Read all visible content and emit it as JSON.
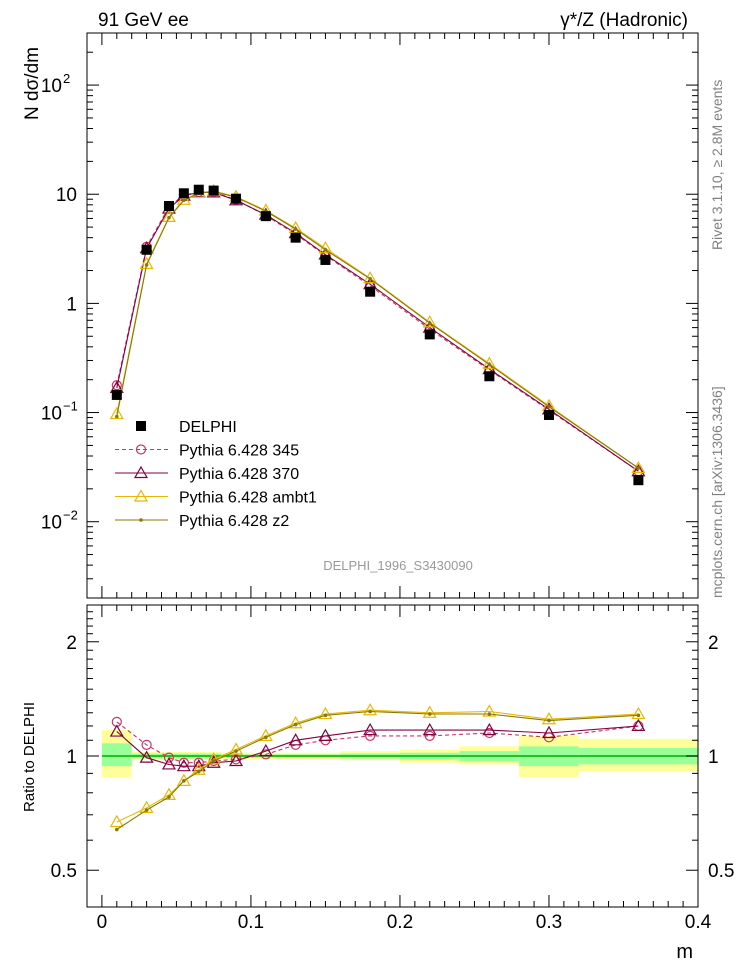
{
  "header": {
    "left": "91 GeV ee",
    "right": "γ*/Z (Hadronic)"
  },
  "side": {
    "rivet": "Rivet 3.1.10, ≥ 2.8M events",
    "mcplots": "mcplots.cern.ch [arXiv:1306.3436]"
  },
  "watermark": "DELPHI_1996_S3430090",
  "colors": {
    "data": "#000000",
    "p345": "#cc3366",
    "p370": "#800040",
    "ambt1": "#e6b800",
    "z2": "#8a7a00",
    "band_inner": "#99ff99",
    "band_outer": "#ffff99"
  },
  "chart_data": [
    {
      "type": "scatter",
      "panel": "main",
      "ylabel": "N dσ/dm",
      "yscale": "log",
      "ylim": [
        0.002,
        300
      ],
      "xlim": [
        -0.01,
        0.4
      ],
      "y_ticks": [
        {
          "value": 100,
          "label": "10",
          "sup": "2"
        },
        {
          "value": 10,
          "label": "10",
          "sup": ""
        },
        {
          "value": 1,
          "label": "1",
          "sup": ""
        },
        {
          "value": 0.1,
          "label": "10",
          "sup": "−1"
        },
        {
          "value": 0.01,
          "label": "10",
          "sup": "−2"
        }
      ],
      "legend": {
        "placement": "lower-left",
        "entries": [
          {
            "key": "data",
            "label": "DELPHI",
            "marker": "square"
          },
          {
            "key": "p345",
            "label": "Pythia 6.428 345",
            "marker": "circle"
          },
          {
            "key": "p370",
            "label": "Pythia 6.428 370",
            "marker": "triangle"
          },
          {
            "key": "ambt1",
            "label": "Pythia 6.428 ambt1",
            "marker": "triangle"
          },
          {
            "key": "z2",
            "label": "Pythia 6.428 z2",
            "marker": "dot"
          }
        ]
      },
      "x": [
        0.01,
        0.03,
        0.045,
        0.055,
        0.065,
        0.075,
        0.09,
        0.11,
        0.13,
        0.15,
        0.18,
        0.22,
        0.26,
        0.3,
        0.36
      ],
      "series": [
        {
          "key": "data",
          "name": "DELPHI",
          "values": [
            0.145,
            3.1,
            7.8,
            10.2,
            11.0,
            10.8,
            9.1,
            6.3,
            4.0,
            2.5,
            1.28,
            0.52,
            0.215,
            0.095,
            0.024
          ]
        },
        {
          "key": "p345",
          "name": "Pythia 6.428 345",
          "values": [
            0.178,
            3.3,
            7.7,
            9.8,
            10.5,
            10.5,
            8.9,
            6.4,
            4.3,
            2.75,
            1.45,
            0.58,
            0.245,
            0.105,
            0.029
          ]
        },
        {
          "key": "p370",
          "name": "Pythia 6.428 370",
          "values": [
            0.168,
            3.2,
            7.4,
            9.7,
            10.4,
            10.4,
            8.8,
            6.5,
            4.4,
            2.8,
            1.5,
            0.6,
            0.25,
            0.107,
            0.029
          ]
        },
        {
          "key": "ambt1",
          "name": "Pythia 6.428 ambt1",
          "values": [
            0.097,
            2.3,
            6.2,
            8.9,
            10.3,
            10.7,
            9.5,
            7.1,
            4.9,
            3.2,
            1.7,
            0.67,
            0.28,
            0.115,
            0.031
          ]
        },
        {
          "key": "z2",
          "name": "Pythia 6.428 z2",
          "values": [
            0.092,
            2.25,
            6.1,
            8.8,
            10.2,
            10.6,
            9.4,
            7.0,
            4.8,
            3.1,
            1.68,
            0.66,
            0.275,
            0.113,
            0.031
          ]
        }
      ]
    },
    {
      "type": "line",
      "panel": "ratio",
      "ylabel": "Ratio to DELPHI",
      "xlabel": "m",
      "yscale": "log",
      "ylim": [
        0.4,
        2.5
      ],
      "xlim": [
        -0.01,
        0.4
      ],
      "y_ticks": [
        {
          "value": 0.5,
          "label": "0.5"
        },
        {
          "value": 1,
          "label": "1"
        },
        {
          "value": 2,
          "label": "2"
        }
      ],
      "x_ticks": [
        {
          "value": 0,
          "label": "0"
        },
        {
          "value": 0.1,
          "label": "0.1"
        },
        {
          "value": 0.2,
          "label": "0.2"
        },
        {
          "value": 0.3,
          "label": "0.3"
        },
        {
          "value": 0.4,
          "label": "0.4"
        }
      ],
      "bands": [
        {
          "x0": 0.0,
          "x1": 0.02,
          "inner": [
            0.94,
            1.08
          ],
          "outer": [
            0.88,
            1.17
          ]
        },
        {
          "x0": 0.02,
          "x1": 0.04,
          "inner": [
            0.985,
            1.015
          ],
          "outer": [
            0.975,
            1.025
          ]
        },
        {
          "x0": 0.04,
          "x1": 0.05,
          "inner": [
            0.985,
            1.015
          ],
          "outer": [
            0.975,
            1.025
          ]
        },
        {
          "x0": 0.05,
          "x1": 0.06,
          "inner": [
            0.985,
            1.015
          ],
          "outer": [
            0.975,
            1.025
          ]
        },
        {
          "x0": 0.06,
          "x1": 0.07,
          "inner": [
            0.985,
            1.015
          ],
          "outer": [
            0.975,
            1.025
          ]
        },
        {
          "x0": 0.07,
          "x1": 0.08,
          "inner": [
            0.985,
            1.015
          ],
          "outer": [
            0.975,
            1.025
          ]
        },
        {
          "x0": 0.08,
          "x1": 0.1,
          "inner": [
            0.99,
            1.01
          ],
          "outer": [
            0.98,
            1.02
          ]
        },
        {
          "x0": 0.1,
          "x1": 0.12,
          "inner": [
            0.99,
            1.01
          ],
          "outer": [
            0.98,
            1.02
          ]
        },
        {
          "x0": 0.12,
          "x1": 0.14,
          "inner": [
            0.99,
            1.01
          ],
          "outer": [
            0.98,
            1.02
          ]
        },
        {
          "x0": 0.14,
          "x1": 0.16,
          "inner": [
            0.99,
            1.01
          ],
          "outer": [
            0.98,
            1.02
          ]
        },
        {
          "x0": 0.16,
          "x1": 0.2,
          "inner": [
            0.985,
            1.015
          ],
          "outer": [
            0.975,
            1.03
          ]
        },
        {
          "x0": 0.2,
          "x1": 0.24,
          "inner": [
            0.98,
            1.02
          ],
          "outer": [
            0.96,
            1.04
          ]
        },
        {
          "x0": 0.24,
          "x1": 0.28,
          "inner": [
            0.97,
            1.03
          ],
          "outer": [
            0.95,
            1.06
          ]
        },
        {
          "x0": 0.28,
          "x1": 0.32,
          "inner": [
            0.94,
            1.06
          ],
          "outer": [
            0.88,
            1.13
          ]
        },
        {
          "x0": 0.32,
          "x1": 0.4,
          "inner": [
            0.95,
            1.05
          ],
          "outer": [
            0.91,
            1.11
          ]
        }
      ],
      "series": [
        {
          "key": "p345",
          "name": "Pythia 6.428 345",
          "values": [
            1.23,
            1.07,
            0.99,
            0.96,
            0.96,
            0.97,
            0.98,
            1.01,
            1.07,
            1.1,
            1.13,
            1.13,
            1.15,
            1.12,
            1.2
          ]
        },
        {
          "key": "p370",
          "name": "Pythia 6.428 370",
          "values": [
            1.16,
            0.99,
            0.95,
            0.94,
            0.94,
            0.96,
            0.97,
            1.03,
            1.1,
            1.13,
            1.17,
            1.17,
            1.17,
            1.15,
            1.2
          ]
        },
        {
          "key": "ambt1",
          "name": "Pythia 6.428 ambt1",
          "values": [
            0.67,
            0.73,
            0.79,
            0.86,
            0.92,
            0.98,
            1.04,
            1.13,
            1.22,
            1.29,
            1.32,
            1.3,
            1.31,
            1.25,
            1.29
          ]
        },
        {
          "key": "z2",
          "name": "Pythia 6.428 z2",
          "values": [
            0.64,
            0.72,
            0.78,
            0.86,
            0.91,
            0.97,
            1.03,
            1.12,
            1.21,
            1.28,
            1.31,
            1.29,
            1.29,
            1.24,
            1.28
          ]
        }
      ]
    }
  ]
}
